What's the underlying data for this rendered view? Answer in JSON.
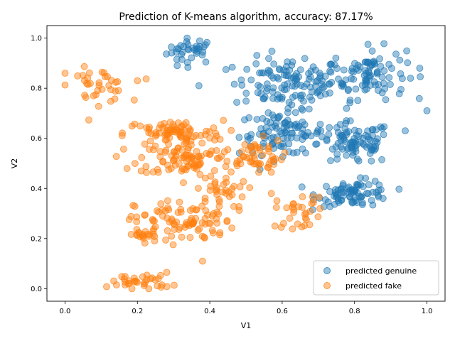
{
  "chart_data": {
    "type": "scatter",
    "title": "Prediction of K-means algorithm, accuracy: 87.17%",
    "xlabel": "V1",
    "ylabel": "V2",
    "xlim": [
      -0.05,
      1.05
    ],
    "ylim": [
      -0.05,
      1.05
    ],
    "xticks": [
      "0.0",
      "0.2",
      "0.4",
      "0.6",
      "0.8",
      "1.0"
    ],
    "yticks": [
      "0.0",
      "0.2",
      "0.4",
      "0.6",
      "0.8",
      "1.0"
    ],
    "grid": false,
    "legend_position": "lower-right",
    "marker_alpha": 0.45,
    "series": [
      {
        "name": "predicted genuine",
        "color": "#1f77b4",
        "clusters": [
          {
            "cx": 0.35,
            "cy": 0.95,
            "sx": 0.04,
            "sy": 0.03,
            "n": 35
          },
          {
            "cx": 0.62,
            "cy": 0.82,
            "sx": 0.09,
            "sy": 0.06,
            "n": 120
          },
          {
            "cx": 0.84,
            "cy": 0.86,
            "sx": 0.06,
            "sy": 0.06,
            "n": 90
          },
          {
            "cx": 0.6,
            "cy": 0.62,
            "sx": 0.07,
            "sy": 0.05,
            "n": 100
          },
          {
            "cx": 0.8,
            "cy": 0.58,
            "sx": 0.06,
            "sy": 0.05,
            "n": 90
          },
          {
            "cx": 0.8,
            "cy": 0.38,
            "sx": 0.06,
            "sy": 0.03,
            "n": 80
          }
        ],
        "points": [
          [
            0.37,
            0.81
          ],
          [
            1.0,
            0.71
          ],
          [
            0.98,
            0.88
          ],
          [
            0.94,
            0.63
          ],
          [
            0.31,
            0.89
          ]
        ]
      },
      {
        "name": "predicted fake",
        "color": "#ff7f0e",
        "clusters": [
          {
            "cx": 0.09,
            "cy": 0.81,
            "sx": 0.05,
            "sy": 0.04,
            "n": 35
          },
          {
            "cx": 0.3,
            "cy": 0.62,
            "sx": 0.08,
            "sy": 0.03,
            "n": 80
          },
          {
            "cx": 0.34,
            "cy": 0.52,
            "sx": 0.08,
            "sy": 0.04,
            "n": 90
          },
          {
            "cx": 0.52,
            "cy": 0.53,
            "sx": 0.05,
            "sy": 0.04,
            "n": 45
          },
          {
            "cx": 0.43,
            "cy": 0.39,
            "sx": 0.04,
            "sy": 0.04,
            "n": 30
          },
          {
            "cx": 0.33,
            "cy": 0.27,
            "sx": 0.08,
            "sy": 0.05,
            "n": 90
          },
          {
            "cx": 0.22,
            "cy": 0.21,
            "sx": 0.03,
            "sy": 0.02,
            "n": 20
          },
          {
            "cx": 0.21,
            "cy": 0.03,
            "sx": 0.05,
            "sy": 0.02,
            "n": 35
          },
          {
            "cx": 0.65,
            "cy": 0.31,
            "sx": 0.04,
            "sy": 0.04,
            "n": 30
          }
        ],
        "points": [
          [
            0.58,
            0.25
          ],
          [
            0.0,
            0.86
          ],
          [
            0.2,
            0.83
          ],
          [
            0.57,
            0.38
          ],
          [
            0.38,
            0.11
          ]
        ]
      }
    ]
  }
}
